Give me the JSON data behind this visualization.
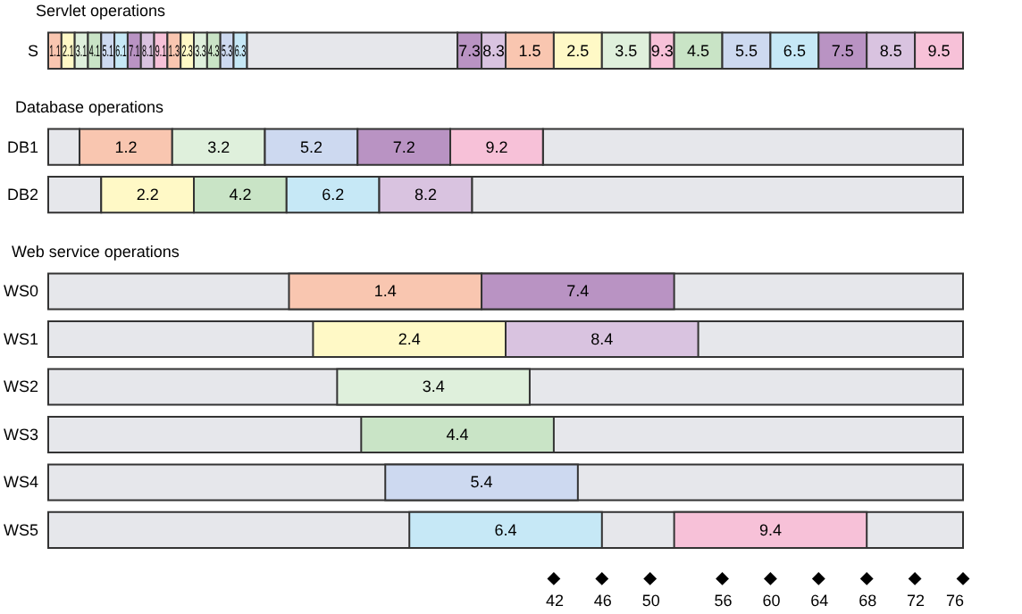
{
  "chart_data": [
    {
      "type": "bar",
      "orientation": "horizontal",
      "title": "Servlet operations",
      "categories": [
        "S"
      ],
      "xlim": [
        0,
        76
      ],
      "tick_labels": "y",
      "series": [
        {
          "color": "#e6e7eb",
          "values": [
            17.5
          ],
          "base": [
            16.5
          ]
        },
        {
          "name": "1.1",
          "color": "#f9c6b0",
          "values": [
            1.1
          ],
          "base": [
            0
          ]
        },
        {
          "name": "2.1",
          "color": "#fff9c6",
          "values": [
            1.1
          ],
          "base": [
            1.1
          ]
        },
        {
          "name": "3.1",
          "color": "#dff0dc",
          "values": [
            1.1
          ],
          "base": [
            2.2
          ]
        },
        {
          "name": "4.1",
          "color": "#c9e4c6",
          "values": [
            1.1
          ],
          "base": [
            3.3
          ]
        },
        {
          "name": "5.1",
          "color": "#cdd9f0",
          "values": [
            1.1
          ],
          "base": [
            4.4
          ]
        },
        {
          "name": "6.1",
          "color": "#c6e8f6",
          "values": [
            1.1
          ],
          "base": [
            5.5
          ]
        },
        {
          "name": "7.1",
          "color": "#b993c3",
          "values": [
            1.1
          ],
          "base": [
            6.6
          ]
        },
        {
          "name": "8.1",
          "color": "#d9c3e0",
          "values": [
            1.1
          ],
          "base": [
            7.7
          ]
        },
        {
          "name": "9.1",
          "color": "#f7c1d8",
          "values": [
            1.1
          ],
          "base": [
            8.8
          ]
        },
        {
          "name": "1.3",
          "color": "#f9c6b0",
          "values": [
            1.1
          ],
          "base": [
            9.9
          ]
        },
        {
          "name": "2.3",
          "color": "#fff9c6",
          "values": [
            1.1
          ],
          "base": [
            11
          ]
        },
        {
          "name": "3.3",
          "color": "#dff0dc",
          "values": [
            1.1
          ],
          "base": [
            12.1
          ]
        },
        {
          "name": "4.3",
          "color": "#c9e4c6",
          "values": [
            1.1
          ],
          "base": [
            13.2
          ]
        },
        {
          "name": "5.3",
          "color": "#cdd9f0",
          "values": [
            1.1
          ],
          "base": [
            14.3
          ]
        },
        {
          "name": "6.3",
          "color": "#c6e8f6",
          "values": [
            1.1
          ],
          "base": [
            15.4
          ]
        },
        {
          "name": "7.3",
          "color": "#b993c3",
          "values": [
            2
          ],
          "base": [
            34
          ]
        },
        {
          "name": "8.3",
          "color": "#d9c3e0",
          "values": [
            2
          ],
          "base": [
            36
          ]
        },
        {
          "name": "1.5",
          "color": "#f9c6b0",
          "values": [
            4
          ],
          "base": [
            38
          ]
        },
        {
          "name": "2.5",
          "color": "#fff9c6",
          "values": [
            4
          ],
          "base": [
            42
          ]
        },
        {
          "name": "3.5",
          "color": "#dff0dc",
          "values": [
            4
          ],
          "base": [
            46
          ]
        },
        {
          "name": "9.3",
          "color": "#f7c1d8",
          "values": [
            2
          ],
          "base": [
            50
          ]
        },
        {
          "name": "4.5",
          "color": "#c9e4c6",
          "values": [
            4
          ],
          "base": [
            52
          ]
        },
        {
          "name": "5.5",
          "color": "#cdd9f0",
          "values": [
            4
          ],
          "base": [
            56
          ]
        },
        {
          "name": "6.5",
          "color": "#c6e8f6",
          "values": [
            4
          ],
          "base": [
            60
          ]
        },
        {
          "name": "7.5",
          "color": "#b993c3",
          "values": [
            4
          ],
          "base": [
            64
          ]
        },
        {
          "name": "8.5",
          "color": "#d9c3e0",
          "values": [
            4
          ],
          "base": [
            68
          ]
        },
        {
          "name": "9.5",
          "color": "#f7c1d8",
          "values": [
            4
          ],
          "base": [
            72
          ]
        }
      ]
    },
    {
      "type": "bar",
      "orientation": "horizontal",
      "title": "Database operations",
      "categories": [
        "DB1",
        "DB2"
      ],
      "xlim": [
        0,
        76
      ],
      "tick_labels": "y",
      "series": [
        {
          "color": "#e6e7eb",
          "values": [
            2.6,
            4.4
          ],
          "base": [
            0,
            0
          ]
        },
        {
          "color": "#e6e7eb",
          "values": [
            34.9,
            40.8
          ],
          "base": [
            41.1,
            35.2
          ]
        },
        {
          "name": "1.2",
          "color": "#f9c6b0",
          "values": [
            7.7,
            null
          ],
          "base": [
            2.6,
            null
          ]
        },
        {
          "name": "3.2",
          "color": "#dff0dc",
          "values": [
            7.7,
            null
          ],
          "base": [
            10.3,
            null
          ]
        },
        {
          "name": "5.2",
          "color": "#cdd9f0",
          "values": [
            7.7,
            null
          ],
          "base": [
            18,
            null
          ]
        },
        {
          "name": "7.2",
          "color": "#b993c3",
          "values": [
            7.7,
            null
          ],
          "base": [
            25.7,
            null
          ]
        },
        {
          "name": "9.2",
          "color": "#f7c1d8",
          "values": [
            7.7,
            null
          ],
          "base": [
            33.4,
            null
          ]
        },
        {
          "name": "2.2",
          "color": "#fff9c6",
          "values": [
            null,
            7.7
          ],
          "base": [
            null,
            4.4
          ]
        },
        {
          "name": "4.2",
          "color": "#c9e4c6",
          "values": [
            null,
            7.7
          ],
          "base": [
            null,
            12.1
          ]
        },
        {
          "name": "6.2",
          "color": "#c6e8f6",
          "values": [
            null,
            7.7
          ],
          "base": [
            null,
            19.8
          ]
        },
        {
          "name": "8.2",
          "color": "#d9c3e0",
          "values": [
            null,
            7.7
          ],
          "base": [
            null,
            27.5
          ]
        }
      ]
    },
    {
      "type": "bar",
      "orientation": "horizontal",
      "title": "Web service operations",
      "categories": [
        "WS0",
        "WS1",
        "WS2",
        "WS3",
        "WS4",
        "WS5"
      ],
      "xlim": [
        0,
        76
      ],
      "xticks": [
        42,
        46,
        50,
        56,
        60,
        64,
        68,
        72,
        76
      ],
      "series": [
        {
          "color": "#e6e7eb",
          "values": [
            76,
            76,
            76,
            76,
            76,
            76
          ],
          "base": [
            0,
            0,
            0,
            0,
            0,
            0
          ]
        },
        {
          "name": "1.4",
          "color": "#f9c6b0",
          "values": [
            16,
            null,
            null,
            null,
            null,
            null
          ],
          "base": [
            20,
            null,
            null,
            null,
            null,
            null
          ]
        },
        {
          "name": "7.4",
          "color": "#b993c3",
          "values": [
            16,
            null,
            null,
            null,
            null,
            null
          ],
          "base": [
            36,
            null,
            null,
            null,
            null,
            null
          ]
        },
        {
          "name": "2.4",
          "color": "#fff9c6",
          "values": [
            null,
            16,
            null,
            null,
            null,
            null
          ],
          "base": [
            null,
            22,
            null,
            null,
            null,
            null
          ]
        },
        {
          "name": "8.4",
          "color": "#d9c3e0",
          "values": [
            null,
            16,
            null,
            null,
            null,
            null
          ],
          "base": [
            null,
            38,
            null,
            null,
            null,
            null
          ]
        },
        {
          "name": "3.4",
          "color": "#dff0dc",
          "values": [
            null,
            null,
            16,
            null,
            null,
            null
          ],
          "base": [
            null,
            null,
            24,
            null,
            null,
            null
          ]
        },
        {
          "name": "4.4",
          "color": "#c9e4c6",
          "values": [
            null,
            null,
            null,
            16,
            null,
            null
          ],
          "base": [
            null,
            null,
            null,
            26,
            null,
            null
          ]
        },
        {
          "name": "5.4",
          "color": "#cdd9f0",
          "values": [
            null,
            null,
            null,
            null,
            16,
            null
          ],
          "base": [
            null,
            null,
            null,
            null,
            28,
            null
          ]
        },
        {
          "name": "6.4",
          "color": "#c6e8f6",
          "values": [
            null,
            null,
            null,
            null,
            null,
            16
          ],
          "base": [
            null,
            null,
            null,
            null,
            null,
            30
          ]
        },
        {
          "name": "9.4",
          "color": "#f7c1d8",
          "values": [
            null,
            null,
            null,
            null,
            null,
            16
          ],
          "base": [
            null,
            null,
            null,
            null,
            null,
            52
          ]
        }
      ]
    }
  ]
}
